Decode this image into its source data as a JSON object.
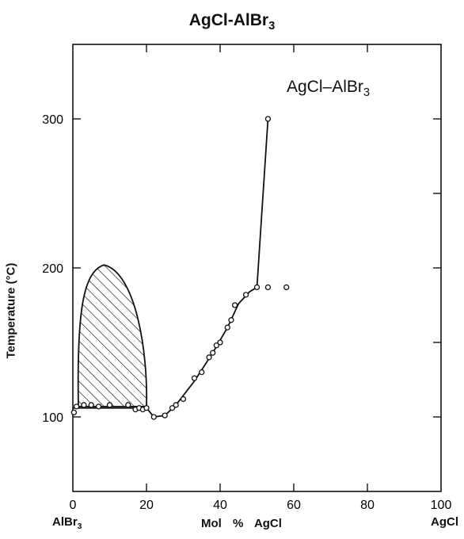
{
  "chart_data": {
    "type": "line",
    "title": "AgCl-AlBr",
    "title_sub": "3",
    "annotation": "AgCl–AlBr",
    "annotation_sub": "3",
    "xlabel": "Mol % AgCl",
    "ylabel": "Temperature (°C)",
    "x_end_labels": {
      "left": "AlBr",
      "left_sub": "3",
      "right": "AgCl"
    },
    "xlim": [
      0,
      100
    ],
    "ylim": [
      50,
      350
    ],
    "x_ticks": [
      0,
      20,
      40,
      60,
      80,
      100
    ],
    "y_ticks": [
      100,
      200,
      300
    ],
    "grid": false,
    "hatched_region": {
      "description": "two-phase region",
      "x_range": [
        1.5,
        20
      ],
      "y_range": [
        107,
        202
      ]
    },
    "series": [
      {
        "points": [
          [
            0.3,
            103
          ],
          [
            1,
            107
          ],
          [
            3,
            108
          ],
          [
            5,
            108
          ],
          [
            7,
            107
          ],
          [
            10,
            108
          ],
          [
            15,
            108
          ],
          [
            17,
            105
          ],
          [
            18,
            106
          ],
          [
            19,
            105
          ],
          [
            20,
            106
          ],
          [
            22,
            100
          ],
          [
            25,
            101
          ],
          [
            27,
            106
          ],
          [
            28,
            108
          ],
          [
            30,
            112
          ],
          [
            33,
            126
          ],
          [
            35,
            130
          ],
          [
            37,
            140
          ],
          [
            38,
            143
          ],
          [
            39,
            148
          ],
          [
            40,
            150
          ],
          [
            42,
            160
          ],
          [
            43,
            165
          ],
          [
            44,
            175
          ],
          [
            47,
            182
          ],
          [
            50,
            187
          ],
          [
            53,
            187
          ],
          [
            53,
            300
          ],
          [
            58,
            187
          ]
        ]
      }
    ]
  }
}
